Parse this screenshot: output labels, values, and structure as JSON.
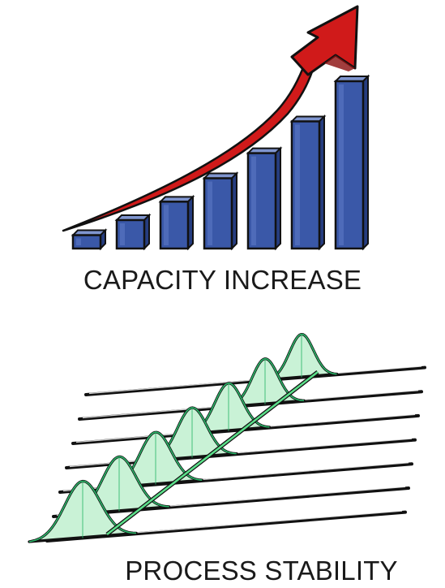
{
  "figure": {
    "top_caption": "CAPACITY INCREASE",
    "bottom_caption": "PROCESS STABILITY",
    "top_graphic_icon": "rising-bar-chart-with-arrow-icon",
    "bottom_graphic_icon": "shifting-distribution-curves-icon"
  },
  "bars": {
    "relative_heights": [
      0.08,
      0.17,
      0.28,
      0.42,
      0.57,
      0.76,
      1.0
    ],
    "colors": {
      "front": "#3a58a8",
      "side": "#263d80",
      "top": "#7f95cf",
      "outline": "#111111"
    }
  },
  "arrow": {
    "color": "#d01a1a",
    "dark": "#8a0c0c"
  },
  "curves": {
    "count": 7,
    "colors": {
      "fill": "#c9f2d6",
      "stroke": "#2bb86a",
      "line": "#111111",
      "spine": "#5be08a"
    }
  }
}
